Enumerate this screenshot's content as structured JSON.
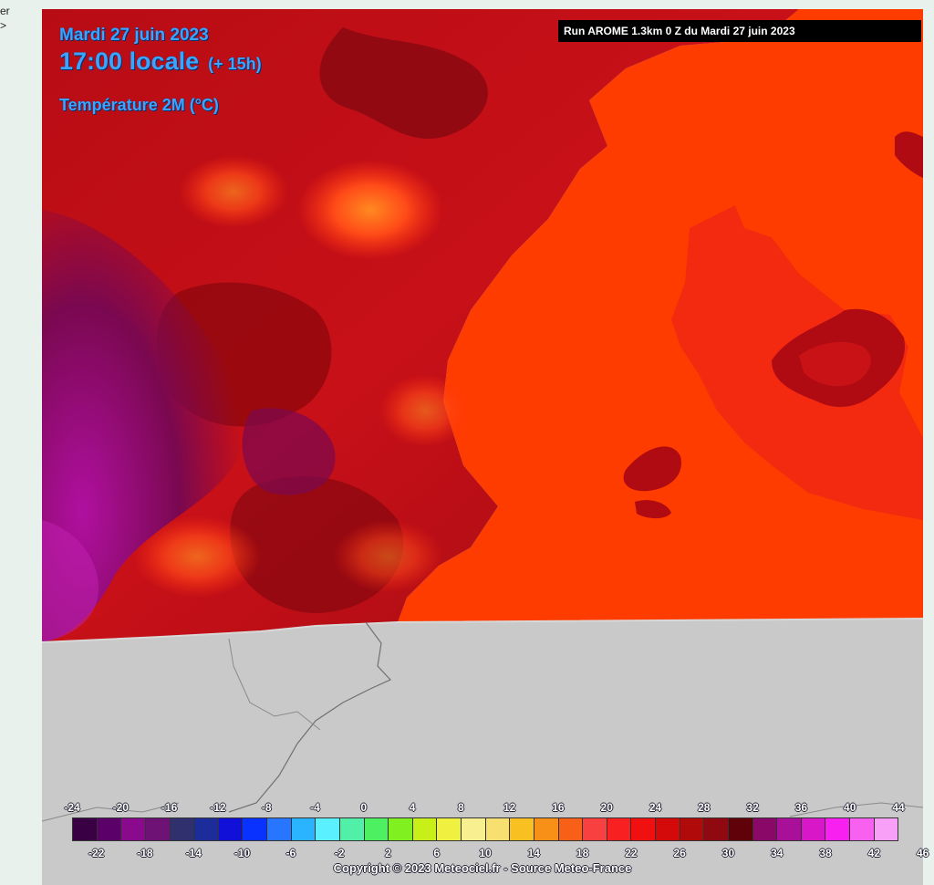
{
  "page": {
    "left_snippet_line1": "er",
    "left_snippet_line2": ">"
  },
  "map": {
    "date": "Mardi 27 juin 2023",
    "time": "17:00 locale",
    "offset": "(+ 15h)",
    "variable": "Température 2M (°C)",
    "run_info": "Run AROME 1.3km 0 Z du Mardi 27 juin 2023",
    "copyright": "Copyright © 2023 Meteociel.fr - Source Meteo-France",
    "colors": {
      "sea": "#ff3c00",
      "sea_hot": "#f42a10",
      "land_base": "#c81018",
      "land_dark": "#800810",
      "land_hot": "#ff4410",
      "land_cool": "#6a0840",
      "land_purple": "#a0108a",
      "outside_domain": "#c9c9c9"
    }
  },
  "legend": {
    "top_labels": [
      "-24",
      "-20",
      "-16",
      "-12",
      "-8",
      "-4",
      "0",
      "4",
      "8",
      "12",
      "16",
      "20",
      "24",
      "28",
      "32",
      "36",
      "40",
      "44"
    ],
    "bottom_labels": [
      "-22",
      "-18",
      "-14",
      "-10",
      "-6",
      "-2",
      "2",
      "6",
      "10",
      "14",
      "18",
      "22",
      "26",
      "30",
      "34",
      "38",
      "42",
      "46"
    ],
    "colors": [
      "#3a0044",
      "#5a0068",
      "#8a0a8e",
      "#6e1276",
      "#30306e",
      "#1c2c9a",
      "#1010d8",
      "#0a32ff",
      "#2876ff",
      "#2ab4ff",
      "#5af0ff",
      "#50f0a8",
      "#4cf060",
      "#80f020",
      "#c8f018",
      "#f0f040",
      "#f8f090",
      "#f8e070",
      "#f8c020",
      "#f89018",
      "#f86018",
      "#f84040",
      "#f82020",
      "#f01010",
      "#d40a0a",
      "#b00a0a",
      "#900810",
      "#600008",
      "#8a0868",
      "#a8109a",
      "#d818c8",
      "#f820f0",
      "#f860f0",
      "#f8a0f8"
    ]
  }
}
